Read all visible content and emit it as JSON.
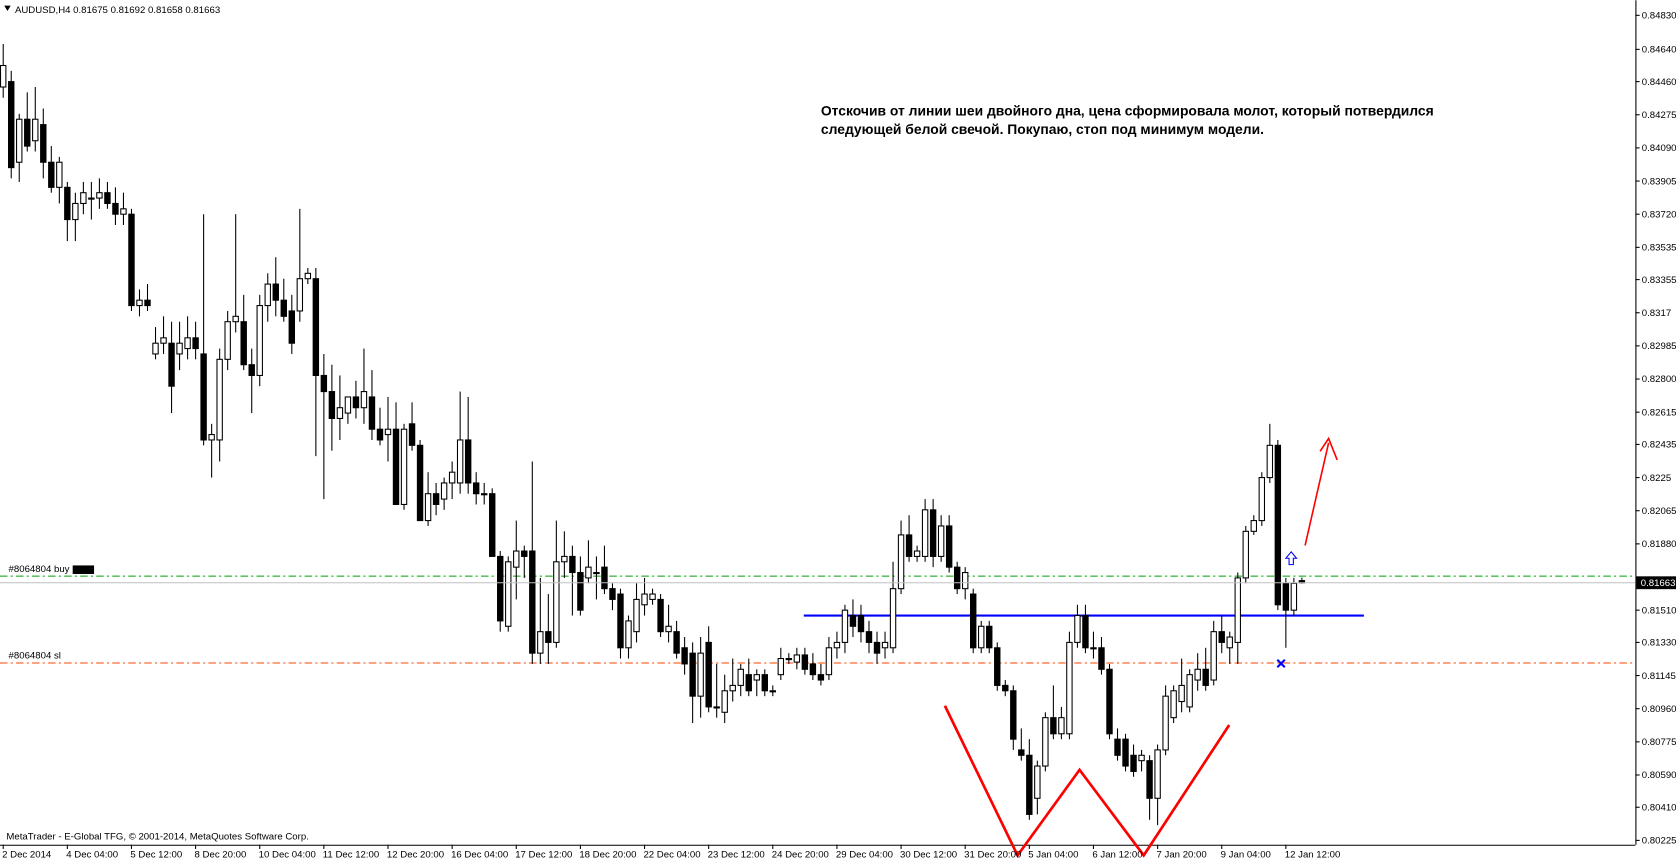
{
  "chart_data": {
    "type": "candlestick",
    "symbol": "AUDUSD,H4",
    "annotation": [
      "Отскочив от линии шеи двойного дна, цена сформировала молот, который потвердился",
      "следующей белой свечой. Покупаю, стоп под минимум модели."
    ],
    "footer": "MetaTrader - E-Global TFG, © 2001-2014, MetaQuotes Software Corp.",
    "ylim": [
      0.80201,
      0.84914
    ],
    "yticks": [
      {
        "value": 0.8483,
        "label": "0.84830"
      },
      {
        "value": 0.8464,
        "label": "0.84640"
      },
      {
        "value": 0.8446,
        "label": "0.84460"
      },
      0.84275,
      {
        "value": 0.8409,
        "label": "0.84090"
      },
      0.83905,
      {
        "value": 0.8372,
        "label": "0.83720"
      },
      0.83535,
      0.83355,
      0.8317,
      0.82985,
      {
        "value": 0.828,
        "label": "0.82800"
      },
      0.82615,
      0.82435,
      0.8225,
      0.82065,
      {
        "value": 0.8188,
        "label": "0.81880"
      },
      {
        "value": 0.8151,
        "label": "0.81510"
      },
      {
        "value": 0.8133,
        "label": "0.81330"
      },
      0.81145,
      {
        "value": 0.8096,
        "label": "0.80960"
      },
      0.80775,
      {
        "value": 0.8059,
        "label": "0.80590"
      },
      {
        "value": 0.8041,
        "label": "0.80410"
      },
      0.80225
    ],
    "categories": [
      "2 Dec 2014",
      null,
      null,
      null,
      null,
      null,
      null,
      null,
      "4 Dec 04:00",
      null,
      null,
      null,
      null,
      null,
      null,
      null,
      "5 Dec 12:00",
      null,
      null,
      null,
      null,
      null,
      null,
      null,
      "8 Dec 20:00",
      null,
      null,
      null,
      null,
      null,
      null,
      null,
      "10 Dec 04:00",
      null,
      null,
      null,
      null,
      null,
      null,
      null,
      "11 Dec 12:00",
      null,
      null,
      null,
      null,
      null,
      null,
      null,
      "12 Dec 20:00",
      null,
      null,
      null,
      null,
      null,
      null,
      null,
      "16 Dec 04:00",
      null,
      null,
      null,
      null,
      null,
      null,
      null,
      "17 Dec 12:00",
      null,
      null,
      null,
      null,
      null,
      null,
      null,
      "18 Dec 20:00",
      null,
      null,
      null,
      null,
      null,
      null,
      null,
      "22 Dec 04:00",
      null,
      null,
      null,
      null,
      null,
      null,
      null,
      "23 Dec 12:00",
      null,
      null,
      null,
      null,
      null,
      null,
      null,
      "24 Dec 20:00",
      null,
      null,
      null,
      null,
      null,
      null,
      null,
      "29 Dec 04:00",
      null,
      null,
      null,
      null,
      null,
      null,
      null,
      "30 Dec 12:00",
      null,
      null,
      null,
      null,
      null,
      null,
      null,
      "31 Dec 20:00",
      null,
      null,
      null,
      null,
      null,
      null,
      null,
      "5 Jan 04:00",
      null,
      null,
      null,
      null,
      null,
      null,
      null,
      "6 Jan 12:00",
      null,
      null,
      null,
      null,
      null,
      null,
      null,
      "7 Jan 20:00",
      null,
      null,
      null,
      null,
      null,
      null,
      null,
      "9 Jan 04:00",
      null,
      null,
      null,
      null,
      null,
      null,
      null,
      "12 Jan 12:00",
      null,
      null
    ],
    "ohlc": [
      [
        0.8443,
        0.8467,
        0.8437,
        0.8455
      ],
      [
        0.8446,
        0.8452,
        0.8392,
        0.8398
      ],
      [
        0.8401,
        0.8428,
        0.839,
        0.8425
      ],
      [
        0.8425,
        0.844,
        0.8407,
        0.841
      ],
      [
        0.8413,
        0.8443,
        0.8407,
        0.8425
      ],
      [
        0.8422,
        0.8431,
        0.8392,
        0.8401
      ],
      [
        0.8401,
        0.841,
        0.8384,
        0.8387
      ],
      [
        0.8387,
        0.8404,
        0.8378,
        0.8401
      ],
      [
        0.8387,
        0.839,
        0.8357,
        0.8369
      ],
      [
        0.8369,
        0.8384,
        0.8357,
        0.8378
      ],
      [
        0.8378,
        0.839,
        0.8372,
        0.8384
      ],
      [
        0.8381,
        0.839,
        0.8369,
        0.8381
      ],
      [
        0.8381,
        0.8392,
        0.8375,
        0.8384
      ],
      [
        0.8384,
        0.839,
        0.8375,
        0.8378
      ],
      [
        0.8378,
        0.8387,
        0.8366,
        0.8372
      ],
      [
        0.8372,
        0.8384,
        0.8366,
        0.8375
      ],
      [
        0.8372,
        0.8375,
        0.8318,
        0.8321
      ],
      [
        0.8321,
        0.833,
        0.8315,
        0.8324
      ],
      [
        0.8324,
        0.8333,
        0.8318,
        0.8321
      ],
      [
        0.8294,
        0.8309,
        0.8291,
        0.83
      ],
      [
        0.83,
        0.8315,
        0.8294,
        0.8303
      ],
      [
        0.83,
        0.8312,
        0.8261,
        0.8276
      ],
      [
        0.8294,
        0.8312,
        0.8285,
        0.83
      ],
      [
        0.8297,
        0.8315,
        0.8291,
        0.8303
      ],
      [
        0.8303,
        0.8312,
        0.8291,
        0.8297
      ],
      [
        0.8294,
        0.8372,
        0.8243,
        0.8246
      ],
      [
        0.8246,
        0.8255,
        0.8225,
        0.8249
      ],
      [
        0.8246,
        0.8297,
        0.8234,
        0.8291
      ],
      [
        0.8291,
        0.8318,
        0.8285,
        0.8312
      ],
      [
        0.8312,
        0.8372,
        0.8306,
        0.8315
      ],
      [
        0.8312,
        0.8327,
        0.8285,
        0.8288
      ],
      [
        0.8288,
        0.8297,
        0.8261,
        0.8282
      ],
      [
        0.8282,
        0.8327,
        0.8276,
        0.8321
      ],
      [
        0.8321,
        0.8339,
        0.8312,
        0.8333
      ],
      [
        0.8333,
        0.8348,
        0.8315,
        0.8324
      ],
      [
        0.8324,
        0.8336,
        0.8312,
        0.8315
      ],
      [
        0.8318,
        0.8327,
        0.8294,
        0.83
      ],
      [
        0.8318,
        0.8375,
        0.8312,
        0.8336
      ],
      [
        0.8336,
        0.8342,
        0.8333,
        0.8339
      ],
      [
        0.8336,
        0.8342,
        0.8237,
        0.8282
      ],
      [
        0.8282,
        0.8294,
        0.8213,
        0.8273
      ],
      [
        0.8273,
        0.8288,
        0.824,
        0.8258
      ],
      [
        0.8258,
        0.8282,
        0.8246,
        0.8264
      ],
      [
        0.8261,
        0.827,
        0.8255,
        0.827
      ],
      [
        0.827,
        0.8279,
        0.8258,
        0.8264
      ],
      [
        0.8264,
        0.8297,
        0.8255,
        0.8273
      ],
      [
        0.827,
        0.8285,
        0.8246,
        0.8252
      ],
      [
        0.8252,
        0.8264,
        0.8243,
        0.8246
      ],
      [
        0.8249,
        0.827,
        0.8234,
        0.8252
      ],
      [
        0.8252,
        0.8267,
        0.821,
        0.821
      ],
      [
        0.821,
        0.8255,
        0.8207,
        0.8252
      ],
      [
        0.8255,
        0.8267,
        0.824,
        0.8243
      ],
      [
        0.8243,
        0.8246,
        0.8201,
        0.8201
      ],
      [
        0.8201,
        0.8228,
        0.8198,
        0.8216
      ],
      [
        0.8216,
        0.8222,
        0.8204,
        0.821
      ],
      [
        0.8213,
        0.8225,
        0.8207,
        0.8222
      ],
      [
        0.8222,
        0.8234,
        0.8213,
        0.8228
      ],
      [
        0.8222,
        0.8273,
        0.8216,
        0.8246
      ],
      [
        0.8246,
        0.827,
        0.8216,
        0.8222
      ],
      [
        0.8222,
        0.8228,
        0.821,
        0.8216
      ],
      [
        0.8216,
        0.8222,
        0.821,
        0.8216
      ],
      [
        0.8216,
        0.8219,
        0.8181,
        0.8181
      ],
      [
        0.8181,
        0.8184,
        0.8139,
        0.8145
      ],
      [
        0.8142,
        0.8181,
        0.8139,
        0.8178
      ],
      [
        0.8175,
        0.8201,
        0.8157,
        0.8184
      ],
      [
        0.8184,
        0.8187,
        0.8169,
        0.8181
      ],
      [
        0.8184,
        0.8234,
        0.8121,
        0.8127
      ],
      [
        0.8127,
        0.8169,
        0.8121,
        0.8139
      ],
      [
        0.8139,
        0.816,
        0.8121,
        0.8133
      ],
      [
        0.8133,
        0.8201,
        0.813,
        0.8178
      ],
      [
        0.8178,
        0.8195,
        0.8169,
        0.8181
      ],
      [
        0.8181,
        0.8187,
        0.8148,
        0.8172
      ],
      [
        0.8172,
        0.8181,
        0.8148,
        0.8151
      ],
      [
        0.8169,
        0.819,
        0.8166,
        0.8175
      ],
      [
        0.8172,
        0.8181,
        0.8157,
        0.8172
      ],
      [
        0.8175,
        0.8187,
        0.816,
        0.8163
      ],
      [
        0.8163,
        0.8166,
        0.8151,
        0.8157
      ],
      [
        0.816,
        0.8163,
        0.8124,
        0.813
      ],
      [
        0.813,
        0.8148,
        0.8124,
        0.8145
      ],
      [
        0.8139,
        0.8166,
        0.8133,
        0.8157
      ],
      [
        0.8154,
        0.8169,
        0.8148,
        0.816
      ],
      [
        0.8157,
        0.8163,
        0.8154,
        0.816
      ],
      [
        0.8157,
        0.816,
        0.8136,
        0.8139
      ],
      [
        0.8139,
        0.8154,
        0.8133,
        0.8142
      ],
      [
        0.8139,
        0.8145,
        0.8124,
        0.8127
      ],
      [
        0.813,
        0.8136,
        0.8115,
        0.8121
      ],
      [
        0.8127,
        0.8133,
        0.8088,
        0.8103
      ],
      [
        0.8103,
        0.8136,
        0.8091,
        0.8127
      ],
      [
        0.8133,
        0.8142,
        0.8094,
        0.8097
      ],
      [
        0.8097,
        0.8121,
        0.8091,
        0.8097
      ],
      [
        0.8094,
        0.8115,
        0.8088,
        0.8106
      ],
      [
        0.8106,
        0.8124,
        0.81,
        0.8109
      ],
      [
        0.8109,
        0.8121,
        0.8103,
        0.8118
      ],
      [
        0.8115,
        0.8124,
        0.8103,
        0.8106
      ],
      [
        0.8112,
        0.8118,
        0.8103,
        0.8115
      ],
      [
        0.8115,
        0.8118,
        0.8103,
        0.8106
      ],
      [
        0.8106,
        0.8109,
        0.8103,
        0.8106
      ],
      [
        0.8115,
        0.813,
        0.8112,
        0.8124
      ],
      [
        0.8124,
        0.8127,
        0.8121,
        0.8124
      ],
      [
        0.8122,
        0.813,
        0.8118,
        0.8126
      ],
      [
        0.8126,
        0.813,
        0.8115,
        0.8118
      ],
      [
        0.8121,
        0.8127,
        0.8112,
        0.8115
      ],
      [
        0.8115,
        0.8121,
        0.8109,
        0.8112
      ],
      [
        0.8115,
        0.8136,
        0.8112,
        0.813
      ],
      [
        0.813,
        0.8139,
        0.8124,
        0.8133
      ],
      [
        0.8133,
        0.8154,
        0.8127,
        0.8151
      ],
      [
        0.8148,
        0.8157,
        0.8136,
        0.8142
      ],
      [
        0.8148,
        0.8154,
        0.8133,
        0.8139
      ],
      [
        0.8139,
        0.8145,
        0.8127,
        0.8133
      ],
      [
        0.8133,
        0.8139,
        0.8121,
        0.8127
      ],
      [
        0.813,
        0.8139,
        0.8124,
        0.8133
      ],
      [
        0.813,
        0.8178,
        0.8127,
        0.8163
      ],
      [
        0.8163,
        0.8201,
        0.816,
        0.8193
      ],
      [
        0.8193,
        0.8204,
        0.8178,
        0.8181
      ],
      [
        0.8181,
        0.8187,
        0.8178,
        0.8184
      ],
      [
        0.8181,
        0.8213,
        0.8178,
        0.8207
      ],
      [
        0.8207,
        0.8213,
        0.8175,
        0.8181
      ],
      [
        0.8181,
        0.8204,
        0.8178,
        0.8198
      ],
      [
        0.8198,
        0.8204,
        0.8172,
        0.8175
      ],
      [
        0.8175,
        0.8178,
        0.816,
        0.8163
      ],
      [
        0.8163,
        0.8175,
        0.8157,
        0.8172
      ],
      [
        0.816,
        0.8163,
        0.8127,
        0.813
      ],
      [
        0.813,
        0.8145,
        0.8127,
        0.8142
      ],
      [
        0.8142,
        0.8145,
        0.8127,
        0.813
      ],
      [
        0.813,
        0.8133,
        0.8106,
        0.8109
      ],
      [
        0.8109,
        0.8112,
        0.8103,
        0.8106
      ],
      [
        0.8106,
        0.8109,
        0.8073,
        0.8079
      ],
      [
        0.8073,
        0.8085,
        0.8067,
        0.807
      ],
      [
        0.807,
        0.8079,
        0.8034,
        0.8037
      ],
      [
        0.8046,
        0.8067,
        0.8037,
        0.8064
      ],
      [
        0.8064,
        0.8094,
        0.8061,
        0.8091
      ],
      [
        0.8091,
        0.8109,
        0.8079,
        0.8082
      ],
      [
        0.8082,
        0.8097,
        0.8079,
        0.8091
      ],
      [
        0.8082,
        0.8139,
        0.8079,
        0.8133
      ],
      [
        0.8133,
        0.8154,
        0.813,
        0.8148
      ],
      [
        0.8148,
        0.8154,
        0.8127,
        0.813
      ],
      [
        0.813,
        0.8139,
        0.8124,
        0.813
      ],
      [
        0.813,
        0.8136,
        0.8115,
        0.8118
      ],
      [
        0.8118,
        0.8121,
        0.8079,
        0.8082
      ],
      [
        0.8079,
        0.8085,
        0.8067,
        0.807
      ],
      [
        0.8079,
        0.8082,
        0.8061,
        0.8064
      ],
      [
        0.807,
        0.8076,
        0.8058,
        0.8061
      ],
      [
        0.8067,
        0.8073,
        0.8061,
        0.807
      ],
      [
        0.8067,
        0.807,
        0.8034,
        0.8046
      ],
      [
        0.8046,
        0.8076,
        0.8031,
        0.8073
      ],
      [
        0.8073,
        0.8109,
        0.807,
        0.8103
      ],
      [
        0.8091,
        0.8109,
        0.8088,
        0.8106
      ],
      [
        0.81,
        0.8124,
        0.8094,
        0.8109
      ],
      [
        0.8097,
        0.8118,
        0.8094,
        0.8115
      ],
      [
        0.8112,
        0.8127,
        0.8106,
        0.8118
      ],
      [
        0.8118,
        0.813,
        0.8106,
        0.8109
      ],
      [
        0.8112,
        0.8145,
        0.8109,
        0.8139
      ],
      [
        0.8139,
        0.8148,
        0.8127,
        0.8133
      ],
      [
        0.813,
        0.8139,
        0.8121,
        0.8136
      ],
      [
        0.8133,
        0.8172,
        0.8121,
        0.8169
      ],
      [
        0.8169,
        0.8198,
        0.8166,
        0.8195
      ],
      [
        0.8195,
        0.8204,
        0.8193,
        0.8201
      ],
      [
        0.8201,
        0.8228,
        0.8198,
        0.8225
      ],
      [
        0.8225,
        0.8255,
        0.8222,
        0.8243
      ],
      [
        0.8243,
        0.8246,
        0.8151,
        0.8154
      ],
      [
        0.8166,
        0.8169,
        0.813,
        0.8151
      ],
      [
        0.8151,
        0.8169,
        0.8148,
        0.8166
      ],
      [
        0.81675,
        0.81692,
        0.81658,
        0.81663
      ]
    ],
    "orders": [
      {
        "label": "#8064804 buy",
        "value": 0.817,
        "color": "#00a000"
      },
      {
        "label": "#8064804 sl",
        "value": 0.81215,
        "color": "#ff4500"
      }
    ],
    "neckline": {
      "value": 0.8148,
      "color": "#0000ff"
    },
    "colors": {
      "up": "#ffffff",
      "down": "#000000",
      "wick": "#000000",
      "bid_line": "#c0c0c0"
    }
  }
}
